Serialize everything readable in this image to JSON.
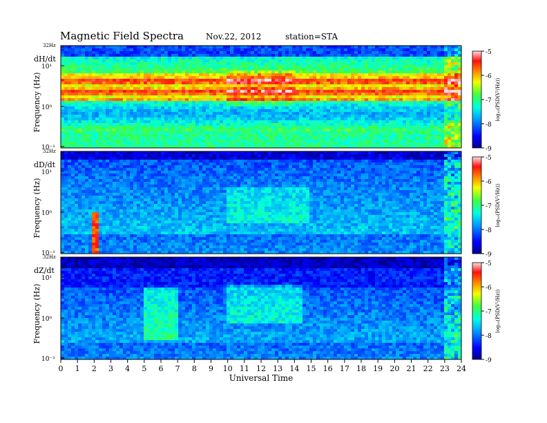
{
  "header": {
    "title": "Magnetic  Field  Spectra",
    "date": "Nov.22, 2012",
    "station": "station=STA"
  },
  "chart_data": [
    {
      "type": "heatmap",
      "panel_label": "dH/dt",
      "ylabel": "Frequency  (Hz)",
      "ytick_labels": [
        "32Hz",
        "10¹",
        "10⁰",
        "10⁻¹"
      ],
      "y_scale": "log",
      "ylim": [
        0.1,
        32
      ],
      "xlim": [
        0,
        24
      ],
      "colorbar": {
        "label": "log₁₀(PSD(V²/Hz))",
        "range": [
          -9,
          -5
        ],
        "tick_labels": [
          "-5",
          "-6",
          "-7",
          "-8",
          "-9"
        ]
      }
    },
    {
      "type": "heatmap",
      "panel_label": "dD/dt",
      "ylabel": "Frequency  (Hz)",
      "ytick_labels": [
        "32Hz",
        "10¹",
        "10⁰",
        "10⁻¹"
      ],
      "y_scale": "log",
      "ylim": [
        0.1,
        32
      ],
      "xlim": [
        0,
        24
      ],
      "colorbar": {
        "label": "log₁₀(PSD(V²/Hz))",
        "range": [
          -9,
          -5
        ],
        "tick_labels": [
          "-5",
          "-6",
          "-7",
          "-8",
          "-9"
        ]
      }
    },
    {
      "type": "heatmap",
      "panel_label": "dZ/dt",
      "ylabel": "Frequency  (Hz)",
      "ytick_labels": [
        "32Hz",
        "10¹",
        "10⁰",
        "10⁻¹"
      ],
      "y_scale": "log",
      "ylim": [
        0.1,
        32
      ],
      "xlim": [
        0,
        24
      ],
      "xlabel": "Universal  Time",
      "xtick_labels": [
        "0",
        "1",
        "2",
        "3",
        "4",
        "5",
        "6",
        "7",
        "8",
        "9",
        "10",
        "11",
        "12",
        "13",
        "14",
        "15",
        "16",
        "17",
        "18",
        "19",
        "20",
        "21",
        "22",
        "23",
        "24"
      ],
      "colorbar": {
        "label": "log₁₀(PSD(V²/Hz))",
        "range": [
          -9,
          -5
        ],
        "tick_labels": [
          "-5",
          "-6",
          "-7",
          "-8",
          "-9"
        ]
      }
    }
  ]
}
